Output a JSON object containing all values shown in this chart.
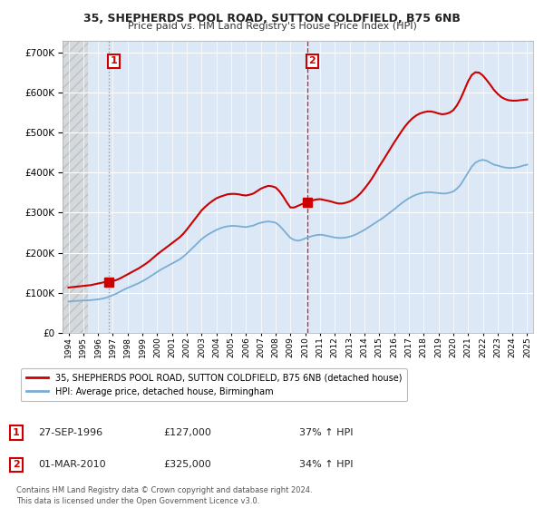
{
  "title": "35, SHEPHERDS POOL ROAD, SUTTON COLDFIELD, B75 6NB",
  "subtitle": "Price paid vs. HM Land Registry's House Price Index (HPI)",
  "ylim": [
    0,
    730000
  ],
  "yticks": [
    0,
    100000,
    200000,
    300000,
    400000,
    500000,
    600000,
    700000
  ],
  "ytick_labels": [
    "£0",
    "£100K",
    "£200K",
    "£300K",
    "£400K",
    "£500K",
    "£600K",
    "£700K"
  ],
  "background_color": "#ffffff",
  "plot_bg_color": "#dce8f5",
  "hatch_color": "#c8c8c8",
  "grid_color": "#ffffff",
  "hpi_color": "#7aadd4",
  "price_color": "#cc0000",
  "t1": 1996.75,
  "t2": 2010.17,
  "price1": 127000,
  "price2": 325000,
  "xmin": 1993.6,
  "xmax": 2025.4,
  "legend_price_label": "35, SHEPHERDS POOL ROAD, SUTTON COLDFIELD, B75 6NB (detached house)",
  "legend_hpi_label": "HPI: Average price, detached house, Birmingham",
  "footnote": "Contains HM Land Registry data © Crown copyright and database right 2024.\nThis data is licensed under the Open Government Licence v3.0.",
  "table_rows": [
    {
      "num": "1",
      "date": "27-SEP-1996",
      "price": "£127,000",
      "hpi": "37% ↑ HPI"
    },
    {
      "num": "2",
      "date": "01-MAR-2010",
      "price": "£325,000",
      "hpi": "34% ↑ HPI"
    }
  ],
  "years_hpi": [
    1994.0,
    1994.25,
    1994.5,
    1994.75,
    1995.0,
    1995.25,
    1995.5,
    1995.75,
    1996.0,
    1996.25,
    1996.5,
    1996.75,
    1997.0,
    1997.25,
    1997.5,
    1997.75,
    1998.0,
    1998.25,
    1998.5,
    1998.75,
    1999.0,
    1999.25,
    1999.5,
    1999.75,
    2000.0,
    2000.25,
    2000.5,
    2000.75,
    2001.0,
    2001.25,
    2001.5,
    2001.75,
    2002.0,
    2002.25,
    2002.5,
    2002.75,
    2003.0,
    2003.25,
    2003.5,
    2003.75,
    2004.0,
    2004.25,
    2004.5,
    2004.75,
    2005.0,
    2005.25,
    2005.5,
    2005.75,
    2006.0,
    2006.25,
    2006.5,
    2006.75,
    2007.0,
    2007.25,
    2007.5,
    2007.75,
    2008.0,
    2008.25,
    2008.5,
    2008.75,
    2009.0,
    2009.25,
    2009.5,
    2009.75,
    2010.0,
    2010.25,
    2010.5,
    2010.75,
    2011.0,
    2011.25,
    2011.5,
    2011.75,
    2012.0,
    2012.25,
    2012.5,
    2012.75,
    2013.0,
    2013.25,
    2013.5,
    2013.75,
    2014.0,
    2014.25,
    2014.5,
    2014.75,
    2015.0,
    2015.25,
    2015.5,
    2015.75,
    2016.0,
    2016.25,
    2016.5,
    2016.75,
    2017.0,
    2017.25,
    2017.5,
    2017.75,
    2018.0,
    2018.25,
    2018.5,
    2018.75,
    2019.0,
    2019.25,
    2019.5,
    2019.75,
    2020.0,
    2020.25,
    2020.5,
    2020.75,
    2021.0,
    2021.25,
    2021.5,
    2021.75,
    2022.0,
    2022.25,
    2022.5,
    2022.75,
    2023.0,
    2023.25,
    2023.5,
    2023.75,
    2024.0,
    2024.25,
    2024.5,
    2024.75,
    2025.0
  ],
  "hpi_values": [
    78000,
    79000,
    79500,
    80000,
    80500,
    81000,
    81500,
    82500,
    83500,
    85000,
    87000,
    90000,
    94000,
    98000,
    103000,
    108000,
    112000,
    116000,
    120000,
    124000,
    129000,
    134000,
    140000,
    146000,
    152000,
    158000,
    163000,
    168000,
    173000,
    178000,
    183000,
    190000,
    198000,
    207000,
    216000,
    225000,
    234000,
    241000,
    247000,
    252000,
    257000,
    261000,
    264000,
    266000,
    267000,
    267000,
    266000,
    265000,
    264000,
    266000,
    268000,
    272000,
    275000,
    277000,
    278000,
    277000,
    275000,
    268000,
    258000,
    247000,
    237000,
    232000,
    230000,
    232000,
    236000,
    239000,
    242000,
    244000,
    245000,
    244000,
    242000,
    240000,
    238000,
    237000,
    237000,
    238000,
    240000,
    243000,
    247000,
    252000,
    257000,
    263000,
    269000,
    275000,
    281000,
    287000,
    294000,
    301000,
    308000,
    316000,
    323000,
    330000,
    336000,
    341000,
    345000,
    348000,
    350000,
    351000,
    351000,
    350000,
    349000,
    348000,
    348000,
    350000,
    353000,
    360000,
    370000,
    385000,
    400000,
    415000,
    425000,
    430000,
    432000,
    430000,
    425000,
    420000,
    418000,
    415000,
    413000,
    412000,
    412000,
    413000,
    415000,
    418000,
    420000
  ],
  "prop_values": [
    113000,
    114000,
    115000,
    116000,
    117000,
    118000,
    119000,
    121000,
    123000,
    125000,
    127000,
    127000,
    129000,
    132000,
    136000,
    141000,
    146000,
    151000,
    156000,
    161000,
    167000,
    173000,
    180000,
    188000,
    196000,
    203000,
    210000,
    217000,
    224000,
    231000,
    238000,
    247000,
    258000,
    270000,
    282000,
    294000,
    306000,
    315000,
    323000,
    330000,
    336000,
    340000,
    343000,
    346000,
    347000,
    347000,
    346000,
    344000,
    343000,
    345000,
    348000,
    354000,
    360000,
    364000,
    367000,
    366000,
    363000,
    354000,
    341000,
    326000,
    313000,
    313000,
    317000,
    321000,
    325000,
    328000,
    331000,
    333000,
    334000,
    332000,
    330000,
    328000,
    325000,
    323000,
    323000,
    325000,
    328000,
    333000,
    340000,
    349000,
    360000,
    372000,
    385000,
    400000,
    416000,
    430000,
    445000,
    460000,
    475000,
    489000,
    503000,
    516000,
    527000,
    536000,
    543000,
    548000,
    551000,
    553000,
    553000,
    551000,
    548000,
    546000,
    547000,
    550000,
    556000,
    568000,
    585000,
    606000,
    628000,
    644000,
    651000,
    650000,
    643000,
    632000,
    620000,
    607000,
    597000,
    589000,
    584000,
    581000,
    580000,
    580000,
    581000,
    582000,
    583000
  ]
}
